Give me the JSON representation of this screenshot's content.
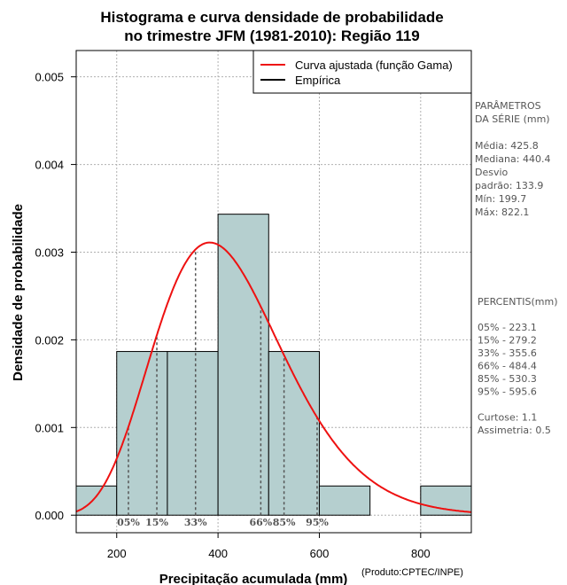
{
  "chart_data": {
    "type": "bar",
    "title_lines": [
      "Histograma e curva densidade de probabilidade",
      "no trimestre JFM (1981-2010): Região 119"
    ],
    "xlabel": "Precipitação acumulada (mm)",
    "ylabel": "Densidade de probabilidade",
    "credit": "(Produto:CPTEC/INPE)",
    "xlim": [
      120,
      900
    ],
    "ylim": [
      -0.0002,
      0.0053
    ],
    "x_ticks": [
      200,
      400,
      600,
      800
    ],
    "x_tick_labels": [
      "200",
      "400",
      "600",
      "800"
    ],
    "y_ticks": [
      0,
      0.001,
      0.002,
      0.003,
      0.004,
      0.005
    ],
    "y_tick_labels": [
      "0.000",
      "0.001",
      "0.002",
      "0.003",
      "0.004",
      "0.005"
    ],
    "bins": [
      {
        "start": 100,
        "end": 200,
        "density": 0.000333
      },
      {
        "start": 200,
        "end": 300,
        "density": 0.001867
      },
      {
        "start": 300,
        "end": 400,
        "density": 0.001867
      },
      {
        "start": 400,
        "end": 500,
        "density": 0.003433
      },
      {
        "start": 500,
        "end": 600,
        "density": 0.001867
      },
      {
        "start": 600,
        "end": 700,
        "density": 0.000333
      },
      {
        "start": 700,
        "end": 800,
        "density": 0
      },
      {
        "start": 800,
        "end": 900,
        "density": 0.000333
      }
    ],
    "gamma_fit": {
      "mean": 425.8,
      "sd": 133.9
    },
    "percentile_markers": [
      {
        "label": "05%",
        "value": 223.1
      },
      {
        "label": "15%",
        "value": 279.2
      },
      {
        "label": "33%",
        "value": 355.6
      },
      {
        "label": "66%",
        "value": 484.4
      },
      {
        "label": "85%",
        "value": 530.3
      },
      {
        "label": "95%",
        "value": 595.6
      }
    ],
    "legend": [
      {
        "label": "Curva ajustada (função Gama)",
        "color": "#ee1111"
      },
      {
        "label": "Empírica",
        "color": "#000000"
      }
    ],
    "colors": {
      "bar_fill": "#b5cfcf",
      "curve": "#ee1111",
      "grid": "#b0b0b0",
      "percentile": "#555555"
    },
    "side_panel": {
      "lines": [
        "PARÂMETROS",
        " DA SÉRIE (mm)",
        "",
        "Média:  425.8",
        "Mediana:  440.4",
        "Desvio",
        "padrão:  133.9",
        "Mín:  199.7",
        "Máx:  822.1"
      ],
      "percentile_lines": [
        " PERCENTIS(mm)",
        "",
        "05% -  223.1",
        "15% -  279.2",
        "33% -  355.6",
        "66% -  484.4",
        "85% -  530.3",
        "95% -  595.6",
        "",
        "Curtose:  1.1",
        "Assimetria:  0.5"
      ]
    }
  }
}
